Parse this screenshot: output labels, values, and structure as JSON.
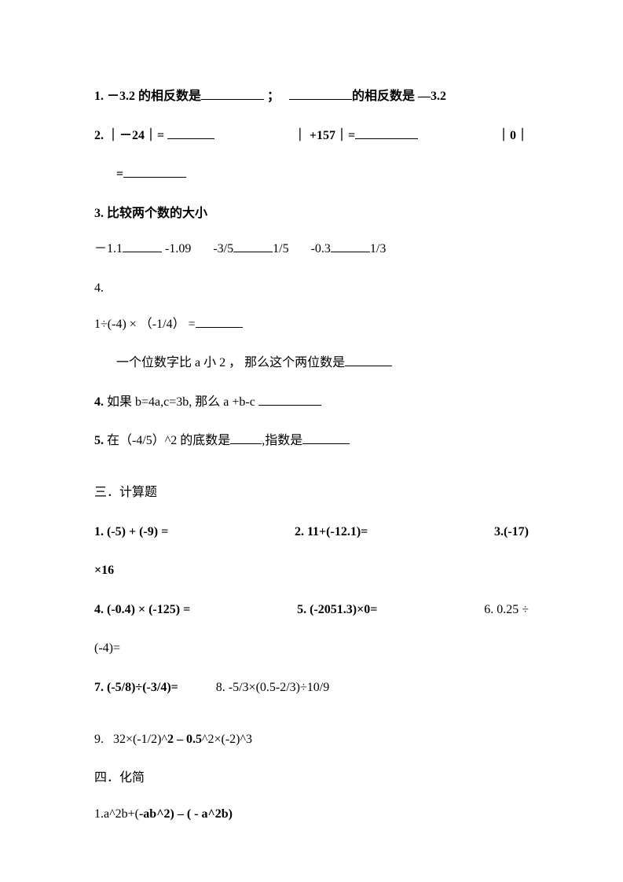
{
  "q1": {
    "num": "1.",
    "pre": "－3.2 的相反数是",
    "mid": "；",
    "post": "的相反数是",
    "tail": "—3.2"
  },
  "q2": {
    "num": "2.",
    "a": "｜－24｜=",
    "b": "｜ +157｜=",
    "c": "｜0｜",
    "d": "="
  },
  "q3": {
    "num": "3.",
    "title": "比较两个数的大小",
    "c1a": "－1.1",
    "c1b": "-1.09",
    "c2a": "-3/5",
    "c2b": "1/5",
    "c3a": "-0.3",
    "c3b": "1/3"
  },
  "q4": {
    "num": "4.",
    "expr": "1÷(-4) × （-1/4） =",
    "sub1_pre": "一个位数字比 a 小 2 ， 那么这个两位数是",
    "sub2_num": "4.",
    "sub2": "如果 b=4a,c=3b, 那么 a +b-c",
    "sub3_num": "5.",
    "sub3_pre": "在（-4/5）^2 的底数是",
    "sub3_mid": ",指数是"
  },
  "sec3": {
    "title": "三．计算题",
    "r1a": "1.  (-5)  +  (-9)  =",
    "r1b": "2.    11+(-12.1)=",
    "r1c": "3.(-17)",
    "r1c2": "×16",
    "r2a": "4.   (-0.4)  ×  (-125)  =",
    "r2b": "5.   (-2051.3)×0=",
    "r2c": "6. 0.25  ÷",
    "r2c2": "(-4)=",
    "r3a": "7.   (-5/8)÷(-3/4)=",
    "r3b": "8. -5/3×(0.5-2/3)÷10/9",
    "r4": "9.    32×(-1/2)^2 – 0.5^2×(-2)^3"
  },
  "sec4": {
    "title": "四．化简",
    "q1": "1.a^2b+(-ab^2) – ( - a^2b)"
  }
}
